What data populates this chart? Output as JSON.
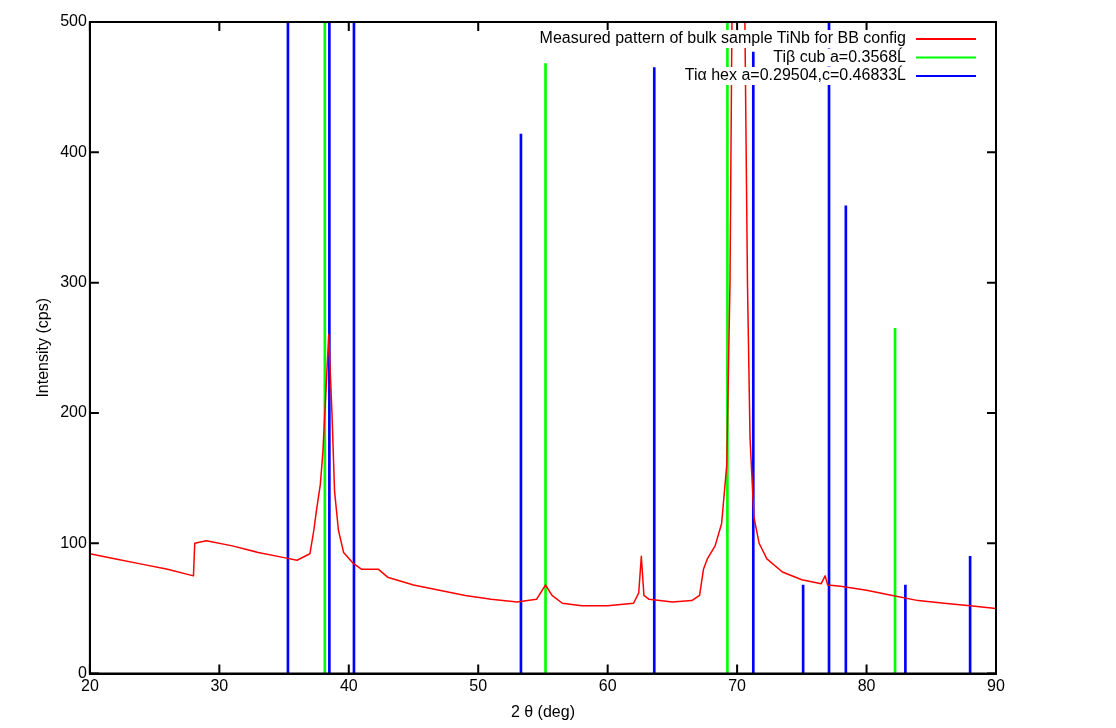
{
  "chart_data": {
    "type": "line",
    "xlabel": "2 θ (deg)",
    "ylabel": "Intensity (cps)",
    "xlim": [
      20,
      90
    ],
    "xticks": [
      20,
      30,
      40,
      50,
      60,
      70,
      80,
      90
    ],
    "ylim": [
      0,
      500
    ],
    "yticks": [
      0,
      100,
      200,
      300,
      400,
      500
    ],
    "legend": "top right",
    "marker": "none",
    "series": [
      {
        "name": "Measured pattern of bulk sample TiNb for BB config",
        "color": "#ff0000",
        "x": [
          20,
          22,
          24,
          26,
          28,
          28.1,
          29,
          31,
          33,
          35,
          36,
          37,
          37.3,
          37.5,
          37.8,
          38,
          38.2,
          38.45,
          38.7,
          38.9,
          39.2,
          39.6,
          40.3,
          41,
          42.3,
          43,
          45,
          47,
          49,
          51,
          53,
          54.5,
          55.2,
          55.7,
          56.5,
          58,
          60,
          62,
          62.4,
          62.6,
          62.8,
          63.2,
          65,
          66.5,
          67.1,
          67.4,
          67.7,
          68.3,
          68.8,
          69.2,
          69.45,
          69.6,
          70.6,
          70.8,
          71,
          71.3,
          71.7,
          72.3,
          73.5,
          75,
          76.5,
          76.8,
          77,
          78,
          80,
          82,
          84,
          86,
          88,
          90
        ],
        "values": [
          92,
          88,
          84,
          80,
          75,
          100,
          102,
          98,
          93,
          89,
          87,
          92,
          110,
          125,
          145,
          170,
          210,
          260,
          200,
          140,
          110,
          93,
          85,
          80,
          80,
          74,
          68,
          64,
          60,
          57,
          55,
          57,
          68,
          60,
          54,
          52,
          52,
          54,
          62,
          90,
          60,
          57,
          55,
          56,
          60,
          80,
          88,
          98,
          115,
          160,
          300,
          500,
          500,
          300,
          180,
          120,
          100,
          88,
          78,
          72,
          69,
          75,
          68,
          67,
          64,
          60,
          56,
          54,
          52,
          50
        ]
      },
      {
        "name": "Tiβ cub a=0.3568Ĺ",
        "color": "#00ff00",
        "type": "bar",
        "x": [
          38.15,
          55.2,
          69.25,
          82.2
        ],
        "values": [
          500,
          468,
          500,
          265
        ]
      },
      {
        "name": "Tiα hex a=0.29504,c=0.46833Ĺ",
        "color": "#0000ff",
        "type": "bar",
        "x": [
          35.3,
          38.5,
          40.4,
          53.3,
          63.6,
          71.25,
          75.1,
          77.1,
          78.4,
          83.0,
          88.0
        ],
        "values": [
          500,
          500,
          500,
          414,
          465,
          477,
          68,
          500,
          359,
          68,
          90
        ]
      }
    ]
  }
}
